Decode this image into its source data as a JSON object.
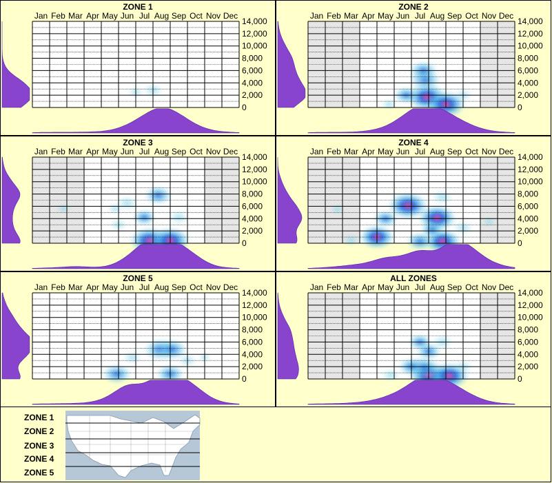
{
  "months": [
    "Jan",
    "Feb",
    "Mar",
    "Apr",
    "May",
    "Jun",
    "Jul",
    "Aug",
    "Sep",
    "Oct",
    "Nov",
    "Dec"
  ],
  "y_ticks": [
    "14,000",
    "12,000",
    "10,000",
    "8,000",
    "6,000",
    "4,000",
    "2,000",
    "0"
  ],
  "legend": {
    "zones": [
      "ZONE 1",
      "ZONE 2",
      "ZONE 3",
      "ZONE 4",
      "ZONE 5"
    ],
    "map_icon": "usa-map-icon"
  },
  "colors": {
    "background": "#ffffcc",
    "density": "#8844cc",
    "grid": "#000000",
    "greyed": "#e6e6e6",
    "heat_low": "#aee8f0",
    "heat_mid": "#1a66dd",
    "heat_high": "#ff44aa"
  },
  "chart_data": [
    {
      "type": "heatmap",
      "title": "ZONE 1",
      "ylim": [
        0,
        14000
      ],
      "greyed_months": [],
      "hotspots": [
        {
          "month": 7.5,
          "elev": 2800,
          "intensity": 0.35
        },
        {
          "month": 6.5,
          "elev": 2500,
          "intensity": 0.2
        }
      ],
      "month_density": [
        0.02,
        0.02,
        0.02,
        0.03,
        0.05,
        0.2,
        0.5,
        0.8,
        0.55,
        0.2,
        0.05,
        0.02
      ],
      "elev_density": [
        0.5,
        0.9,
        0.6,
        0.1,
        0.0,
        0.0,
        0.0,
        0.0
      ]
    },
    {
      "type": "heatmap",
      "title": "ZONE 2",
      "ylim": [
        0,
        14000
      ],
      "greyed_months": [
        "Jan",
        "Feb",
        "Mar",
        "Nov",
        "Dec"
      ],
      "hotspots": [
        {
          "month": 7.4,
          "elev": 1700,
          "intensity": 1.0
        },
        {
          "month": 8.5,
          "elev": 500,
          "intensity": 1.0
        },
        {
          "month": 7.3,
          "elev": 4500,
          "intensity": 0.7
        },
        {
          "month": 7.2,
          "elev": 6000,
          "intensity": 0.6
        },
        {
          "month": 6.2,
          "elev": 2000,
          "intensity": 0.5
        },
        {
          "month": 9.5,
          "elev": 2000,
          "intensity": 0.3
        },
        {
          "month": 5.2,
          "elev": 500,
          "intensity": 0.2
        }
      ],
      "month_density": [
        0.02,
        0.02,
        0.02,
        0.05,
        0.15,
        0.45,
        0.85,
        0.75,
        0.45,
        0.2,
        0.05,
        0.02
      ],
      "elev_density": [
        0.4,
        0.85,
        0.6,
        0.45,
        0.4,
        0.2,
        0.05,
        0.0
      ]
    },
    {
      "type": "heatmap",
      "title": "ZONE 3",
      "ylim": [
        0,
        14000
      ],
      "greyed_months": [
        "Jan",
        "Feb",
        "Mar",
        "Nov",
        "Dec"
      ],
      "hotspots": [
        {
          "month": 7.3,
          "elev": 400,
          "intensity": 1.0
        },
        {
          "month": 8.5,
          "elev": 400,
          "intensity": 1.0
        },
        {
          "month": 7.8,
          "elev": 7800,
          "intensity": 0.6
        },
        {
          "month": 7.0,
          "elev": 4200,
          "intensity": 0.45
        },
        {
          "month": 6.0,
          "elev": 6500,
          "intensity": 0.4
        },
        {
          "month": 9.0,
          "elev": 4200,
          "intensity": 0.35
        },
        {
          "month": 5.3,
          "elev": 5600,
          "intensity": 0.2
        },
        {
          "month": 2.3,
          "elev": 5600,
          "intensity": 0.15
        },
        {
          "month": 5.5,
          "elev": 3000,
          "intensity": 0.25
        }
      ],
      "month_density": [
        0.02,
        0.03,
        0.08,
        0.03,
        0.05,
        0.3,
        0.8,
        0.85,
        0.75,
        0.35,
        0.05,
        0.02
      ],
      "elev_density": [
        0.6,
        0.3,
        0.25,
        0.3,
        0.55,
        0.25,
        0.05,
        0.0
      ]
    },
    {
      "type": "heatmap",
      "title": "ZONE 4",
      "ylim": [
        0,
        14000
      ],
      "greyed_months": [
        "Jan",
        "Feb",
        "Mar",
        "Nov",
        "Dec"
      ],
      "hotspots": [
        {
          "month": 6.3,
          "elev": 6100,
          "intensity": 1.0
        },
        {
          "month": 8.0,
          "elev": 4100,
          "intensity": 0.95
        },
        {
          "month": 4.5,
          "elev": 1000,
          "intensity": 0.85
        },
        {
          "month": 8.3,
          "elev": 300,
          "intensity": 0.9
        },
        {
          "month": 7.0,
          "elev": 300,
          "intensity": 0.6
        },
        {
          "month": 5.0,
          "elev": 4000,
          "intensity": 0.5
        },
        {
          "month": 8.3,
          "elev": 7500,
          "intensity": 0.4
        },
        {
          "month": 7.7,
          "elev": 2200,
          "intensity": 0.45
        },
        {
          "month": 9.5,
          "elev": 2500,
          "intensity": 0.35
        },
        {
          "month": 2.2,
          "elev": 5500,
          "intensity": 0.2
        },
        {
          "month": 3.0,
          "elev": 500,
          "intensity": 0.25
        },
        {
          "month": 11.0,
          "elev": 3500,
          "intensity": 0.15
        }
      ],
      "month_density": [
        0.02,
        0.05,
        0.1,
        0.15,
        0.35,
        0.3,
        0.6,
        0.35,
        0.95,
        0.6,
        0.2,
        0.05
      ],
      "elev_density": [
        0.6,
        0.4,
        0.7,
        0.5,
        0.25,
        0.1,
        0.0,
        0.0
      ]
    },
    {
      "type": "heatmap",
      "title": "ZONE 5",
      "ylim": [
        0,
        14000
      ],
      "greyed_months": [],
      "hotspots": [
        {
          "month": 7.9,
          "elev": 4800,
          "intensity": 0.75
        },
        {
          "month": 8.6,
          "elev": 4800,
          "intensity": 0.7
        },
        {
          "month": 5.4,
          "elev": 800,
          "intensity": 0.65
        },
        {
          "month": 8.5,
          "elev": 800,
          "intensity": 0.6
        },
        {
          "month": 6.3,
          "elev": 3500,
          "intensity": 0.3
        },
        {
          "month": 9.5,
          "elev": 3000,
          "intensity": 0.3
        },
        {
          "month": 10.5,
          "elev": 3500,
          "intensity": 0.1
        }
      ],
      "month_density": [
        0.02,
        0.02,
        0.03,
        0.05,
        0.2,
        0.65,
        0.45,
        0.95,
        0.85,
        0.5,
        0.1,
        0.02
      ],
      "elev_density": [
        0.6,
        0.3,
        0.7,
        0.9,
        0.5,
        0.3,
        0.1,
        0.0
      ]
    },
    {
      "type": "heatmap",
      "title": "ALL ZONES",
      "ylim": [
        0,
        14000
      ],
      "greyed_months": [
        "Jan",
        "Feb",
        "Mar",
        "Nov",
        "Dec"
      ],
      "hotspots": [
        {
          "month": 7.5,
          "elev": 600,
          "intensity": 1.0
        },
        {
          "month": 8.7,
          "elev": 500,
          "intensity": 1.0
        },
        {
          "month": 7.2,
          "elev": 1900,
          "intensity": 0.7
        },
        {
          "month": 6.5,
          "elev": 2000,
          "intensity": 0.55
        },
        {
          "month": 7.5,
          "elev": 4500,
          "intensity": 0.5
        },
        {
          "month": 7.0,
          "elev": 6000,
          "intensity": 0.45
        },
        {
          "month": 8.3,
          "elev": 6000,
          "intensity": 0.4
        },
        {
          "month": 9.5,
          "elev": 2000,
          "intensity": 0.3
        },
        {
          "month": 5.3,
          "elev": 600,
          "intensity": 0.3
        }
      ],
      "month_density": [
        0.02,
        0.02,
        0.04,
        0.08,
        0.2,
        0.4,
        0.8,
        0.8,
        0.55,
        0.25,
        0.06,
        0.02
      ],
      "elev_density": [
        0.55,
        0.55,
        0.45,
        0.4,
        0.35,
        0.15,
        0.03,
        0.0
      ]
    }
  ]
}
